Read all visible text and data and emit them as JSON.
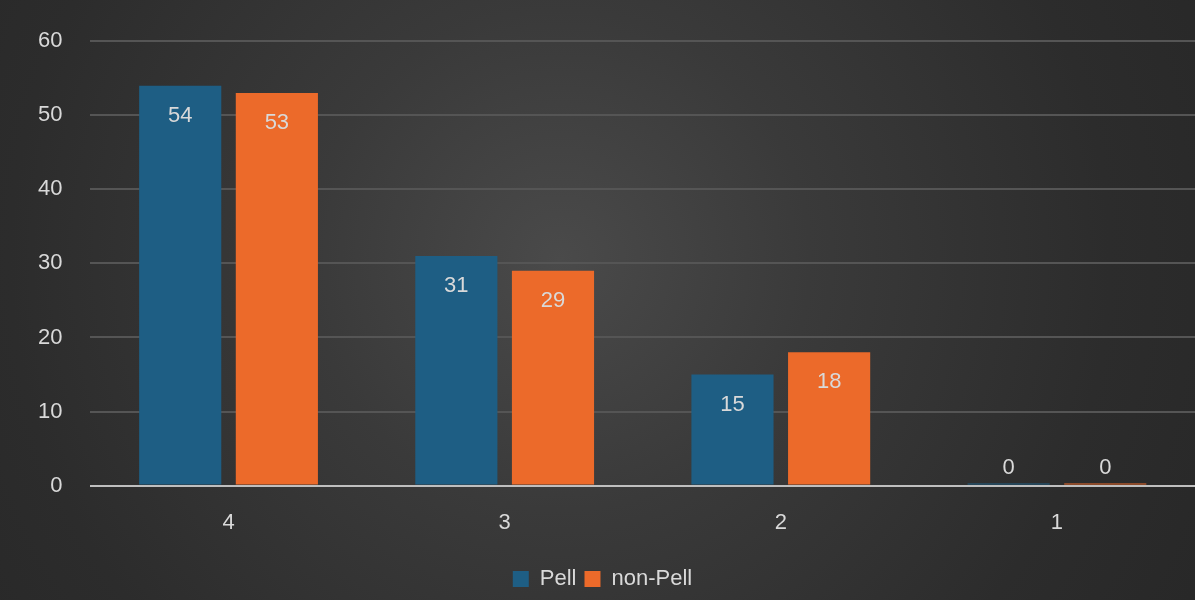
{
  "chart_data": {
    "type": "bar",
    "categories": [
      "4",
      "3",
      "2",
      "1"
    ],
    "series": [
      {
        "name": "Pell",
        "color": "#1e5e84",
        "values": [
          54,
          31,
          15,
          0
        ]
      },
      {
        "name": "non-Pell",
        "color": "#ec6a2a",
        "values": [
          53,
          29,
          18,
          0
        ]
      }
    ],
    "ylim": [
      0,
      60
    ],
    "yticks": [
      0,
      10,
      20,
      30,
      40,
      50,
      60
    ],
    "grid": "y",
    "legend": "bottom",
    "data_labels": true
  }
}
